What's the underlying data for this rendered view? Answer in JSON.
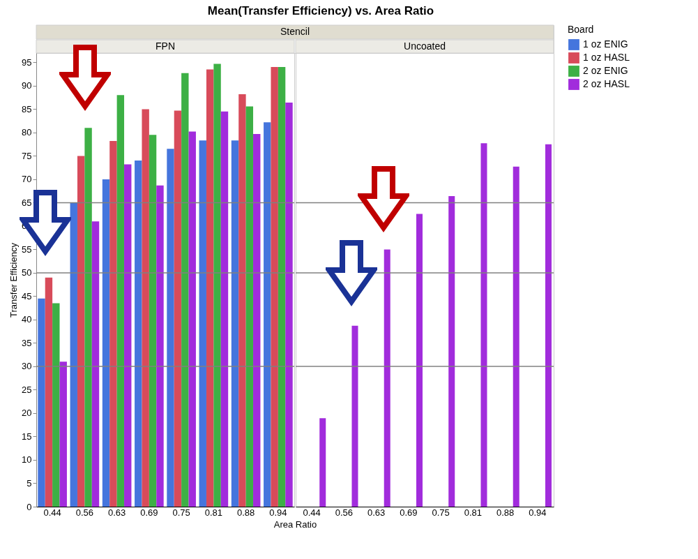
{
  "chart_data": [
    {
      "type": "bar",
      "title": "Mean(Transfer Efficiency) vs. Area Ratio",
      "subtitle": "Stencil",
      "annotations": [
        "FPN"
      ],
      "xlabel": "Area Ratio",
      "ylabel": "Transfer Efficiency",
      "legend_title": "Board",
      "legend": "top right",
      "categories": [
        "0.44",
        "0.56",
        "0.63",
        "0.69",
        "0.75",
        "0.81",
        "0.88",
        "0.94"
      ],
      "series": [
        {
          "name": "1 oz ENIG",
          "color": "#4575dd",
          "values": [
            44.5,
            65,
            70,
            74,
            76.5,
            78.3,
            78.3,
            82.2
          ]
        },
        {
          "name": "1 oz HASL",
          "color": "#d84b5a",
          "values": [
            49,
            75,
            78.2,
            85,
            84.7,
            93.5,
            88.2,
            94
          ]
        },
        {
          "name": "2 oz ENIG",
          "color": "#3db045",
          "values": [
            43.5,
            81,
            88,
            79.5,
            92.7,
            94.7,
            85.6,
            94
          ]
        },
        {
          "name": "2 oz HASL",
          "color": "#a12cdc",
          "values": [
            31,
            61,
            73.2,
            68.7,
            80.2,
            84.5,
            79.7,
            86.4
          ]
        }
      ],
      "ylim": [
        0,
        97
      ],
      "yticks": [
        0,
        5,
        10,
        15,
        20,
        25,
        30,
        35,
        40,
        45,
        50,
        55,
        60,
        65,
        70,
        75,
        80,
        85,
        90,
        95
      ],
      "ref_lines": [
        {
          "axis": "y",
          "value": 30,
          "color": "#808080"
        },
        {
          "axis": "y",
          "value": 50,
          "color": "#808080"
        },
        {
          "axis": "y",
          "value": 65,
          "color": "#808080"
        }
      ]
    },
    {
      "type": "bar",
      "annotations": [
        "Uncoated"
      ],
      "tick_labels": "x",
      "categories": [
        "0.44",
        "0.56",
        "0.63",
        "0.69",
        "0.75",
        "0.81",
        "0.88",
        "0.94"
      ],
      "series": [
        {
          "name": "2 oz HASL",
          "color": "#a12cdc",
          "values": [
            18.9,
            38.7,
            55,
            62.6,
            66.4,
            77.7,
            72.7,
            77.5
          ]
        }
      ],
      "ylim": [
        0,
        97
      ],
      "ref_lines": [
        {
          "axis": "y",
          "value": 30,
          "color": "#808080"
        },
        {
          "axis": "y",
          "value": 50,
          "color": "#808080"
        },
        {
          "axis": "y",
          "value": 65,
          "color": "#808080"
        }
      ]
    }
  ]
}
